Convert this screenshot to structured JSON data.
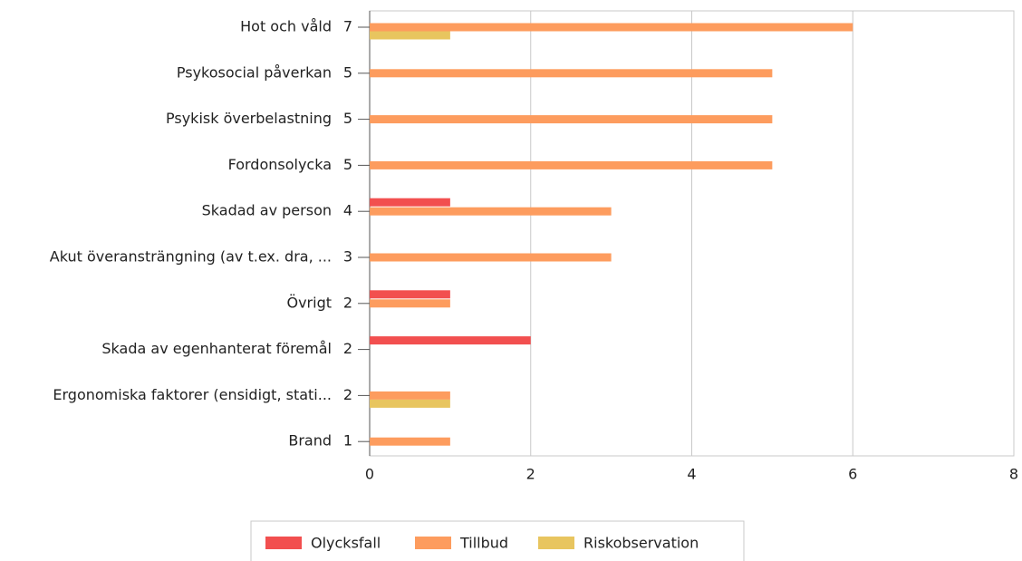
{
  "chart_data": {
    "type": "bar",
    "orientation": "horizontal",
    "categories": [
      "Hot och våld",
      "Psykosocial påverkan",
      "Psykisk överbelastning",
      "Fordonsolycka",
      "Skadad av person",
      "Akut överansträngning (av t.ex. dra, ...",
      "Övrigt",
      "Skada av egenhanterat föremål",
      "Ergonomiska faktorer (ensidigt, stati...",
      "Brand"
    ],
    "totals": [
      7,
      5,
      5,
      5,
      4,
      3,
      2,
      2,
      2,
      1
    ],
    "series": [
      {
        "name": "Olycksfall",
        "color": "#f24f4f",
        "values": [
          0,
          0,
          0,
          0,
          1,
          0,
          1,
          2,
          0,
          0
        ]
      },
      {
        "name": "Tillbud",
        "color": "#fd9c5e",
        "values": [
          6,
          5,
          5,
          5,
          3,
          3,
          1,
          0,
          1,
          1
        ]
      },
      {
        "name": "Riskobservation",
        "color": "#e8c55f",
        "values": [
          1,
          0,
          0,
          0,
          0,
          0,
          0,
          0,
          1,
          0
        ]
      }
    ],
    "xlim": [
      0,
      8
    ],
    "xticks": [
      0,
      2,
      4,
      6,
      8
    ],
    "grid": true,
    "legend": "bottom"
  }
}
